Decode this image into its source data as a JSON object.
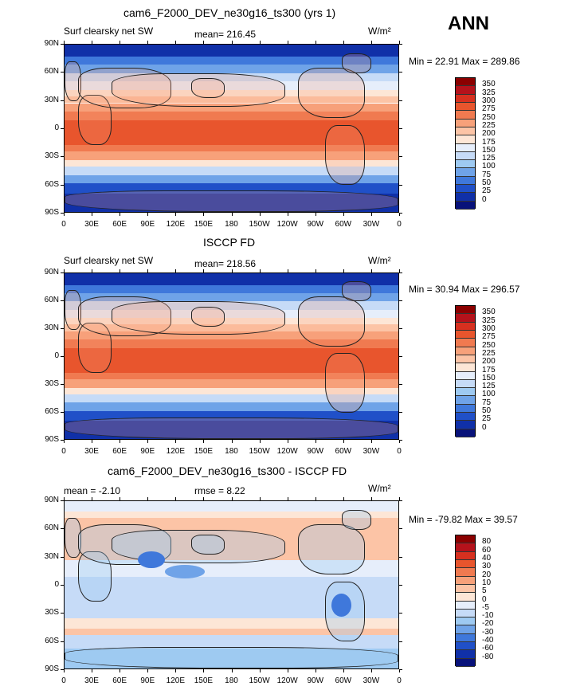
{
  "season": "ANN",
  "panels": [
    {
      "title": "cam6_F2000_DEV_ne30g16_ts300 (yrs 1)",
      "left_header": "Surf clearsky net SW",
      "mid_header": "mean= 216.45",
      "units": "W/m²",
      "stats": "Min =   22.91  Max =  289.86",
      "colorbar": {
        "labels": [
          "350",
          "325",
          "300",
          "275",
          "250",
          "225",
          "200",
          "175",
          "150",
          "125",
          "100",
          "75",
          "50",
          "25",
          "0"
        ],
        "colors": [
          "#8b0000",
          "#b5121b",
          "#d7301f",
          "#e8552d",
          "#f07a50",
          "#f7a17a",
          "#fcc4a6",
          "#fde6d6",
          "#e6eefb",
          "#c6dbf7",
          "#9ecaf2",
          "#6fa3e8",
          "#3f78db",
          "#2050c8",
          "#1030a8",
          "#08127a"
        ]
      },
      "field": "abs"
    },
    {
      "title": "ISCCP FD",
      "left_header": "Surf clearsky net SW",
      "mid_header": "mean= 218.56",
      "units": "W/m²",
      "stats": "Min =   30.94  Max =  296.57",
      "colorbar": {
        "labels": [
          "350",
          "325",
          "300",
          "275",
          "250",
          "225",
          "200",
          "175",
          "150",
          "125",
          "100",
          "75",
          "50",
          "25",
          "0"
        ],
        "colors": [
          "#8b0000",
          "#b5121b",
          "#d7301f",
          "#e8552d",
          "#f07a50",
          "#f7a17a",
          "#fcc4a6",
          "#fde6d6",
          "#e6eefb",
          "#c6dbf7",
          "#9ecaf2",
          "#6fa3e8",
          "#3f78db",
          "#2050c8",
          "#1030a8",
          "#08127a"
        ]
      },
      "field": "abs"
    },
    {
      "title": "cam6_F2000_DEV_ne30g16_ts300 - ISCCP FD",
      "left_header": "mean =   -2.10",
      "mid_header": "rmse =    8.22",
      "units": "W/m²",
      "stats": "Min = -79.82  Max =   39.57",
      "colorbar": {
        "labels": [
          "80",
          "60",
          "40",
          "30",
          "20",
          "10",
          "5",
          "0",
          "-5",
          "-10",
          "-20",
          "-30",
          "-40",
          "-60",
          "-80"
        ],
        "colors": [
          "#8b0000",
          "#b5121b",
          "#d7301f",
          "#e8552d",
          "#f07a50",
          "#f7a17a",
          "#fcc4a6",
          "#fde6d6",
          "#e6eefb",
          "#c6dbf7",
          "#9ecaf2",
          "#6fa3e8",
          "#3f78db",
          "#2050c8",
          "#1030a8",
          "#08127a"
        ]
      },
      "field": "diff"
    }
  ],
  "lat_labels": [
    "90N",
    "60N",
    "30N",
    "0",
    "30S",
    "60S",
    "90S"
  ],
  "lon_labels": [
    "0",
    "30E",
    "60E",
    "90E",
    "120E",
    "150E",
    "180",
    "150W",
    "120W",
    "90W",
    "60W",
    "30W",
    "0"
  ]
}
